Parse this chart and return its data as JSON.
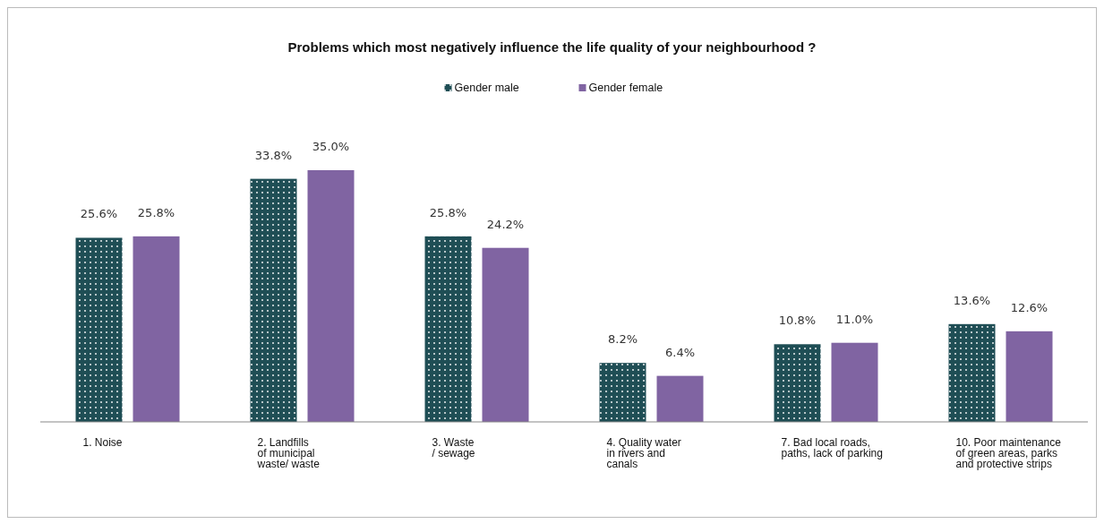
{
  "chart_data": {
    "type": "bar",
    "title": "Problems which most negatively influence the life quality of your neighbourhood ?",
    "categories": [
      "1. Noise",
      "2. Landfills\nof municipal\nwaste/ waste",
      "3. Waste\n/ sewage",
      "4. Quality water\nin rivers and\ncanals",
      "7. Bad local roads,\npaths, lack of parking",
      "10. Poor maintenance\nof green areas, parks\nand protective strips"
    ],
    "series": [
      {
        "name": "Gender male",
        "color": "#1f4e55",
        "values": [
          25.6,
          33.8,
          25.8,
          8.2,
          10.8,
          13.6
        ],
        "value_labels": [
          "25.6%",
          "33.8%",
          "25.8%",
          "8.2%",
          "10.8%",
          "13.6%"
        ]
      },
      {
        "name": "Gender female",
        "color": "#8064a2",
        "values": [
          25.8,
          35.0,
          24.2,
          6.4,
          11.0,
          12.6
        ],
        "value_labels": [
          "25.8%",
          "35.0%",
          "24.2%",
          "6.4%",
          "11.0%",
          "12.6%"
        ]
      }
    ],
    "legend": "top",
    "grid": false
  }
}
